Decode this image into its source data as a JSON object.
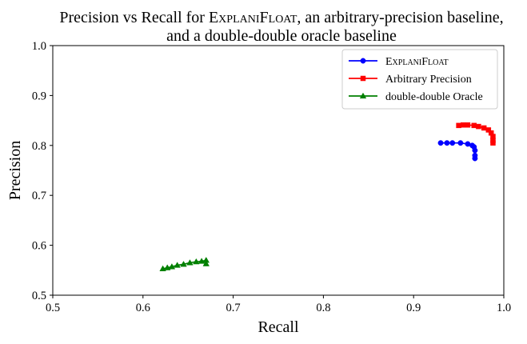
{
  "chart_data": {
    "type": "line",
    "title_lines": [
      "Precision vs Recall for ExplaniFloat, an arbitrary-precision baseline,",
      "and a double-double oracle baseline"
    ],
    "xlabel": "Recall",
    "ylabel": "Precision",
    "xlim": [
      0.5,
      1.0
    ],
    "ylim": [
      0.5,
      1.0
    ],
    "xticks": [
      "0.5",
      "0.6",
      "0.7",
      "0.8",
      "0.9",
      "1.0"
    ],
    "yticks": [
      "0.5",
      "0.6",
      "0.7",
      "0.8",
      "0.9",
      "1.0"
    ],
    "grid": false,
    "legend_position": "top-right",
    "series": [
      {
        "name": "ExplaniFloat",
        "color": "#0000ff",
        "marker": "circle",
        "x": [
          0.93,
          0.937,
          0.943,
          0.952,
          0.96,
          0.965,
          0.967,
          0.968,
          0.968,
          0.968
        ],
        "y": [
          0.805,
          0.805,
          0.805,
          0.805,
          0.803,
          0.8,
          0.797,
          0.79,
          0.78,
          0.774
        ]
      },
      {
        "name": "Arbitrary Precision",
        "color": "#ff0000",
        "marker": "square",
        "x": [
          0.95,
          0.955,
          0.96,
          0.967,
          0.972,
          0.978,
          0.983,
          0.986,
          0.988,
          0.988,
          0.988
        ],
        "y": [
          0.84,
          0.841,
          0.841,
          0.84,
          0.838,
          0.835,
          0.831,
          0.825,
          0.818,
          0.81,
          0.805
        ]
      },
      {
        "name": "double-double Oracle",
        "color": "#008000",
        "marker": "triangle",
        "x": [
          0.622,
          0.627,
          0.632,
          0.638,
          0.645,
          0.652,
          0.659,
          0.665,
          0.67,
          0.67
        ],
        "y": [
          0.553,
          0.555,
          0.557,
          0.56,
          0.562,
          0.565,
          0.567,
          0.568,
          0.57,
          0.563
        ]
      }
    ]
  }
}
